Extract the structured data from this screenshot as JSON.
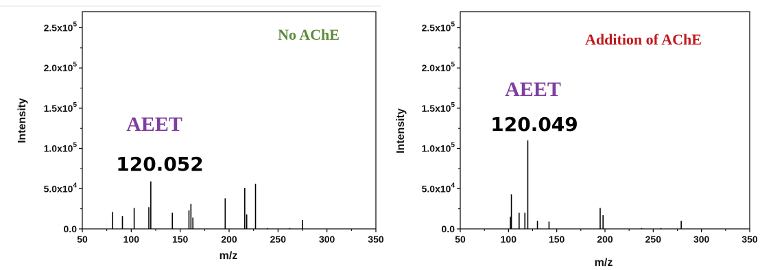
{
  "colors": {
    "green": "#5a8a3a",
    "red": "#c0191b",
    "purple": "#7e3fa0",
    "stick": "#000000"
  },
  "chart_data": [
    {
      "type": "bar",
      "subtype": "mass-spectrum-sticks",
      "title": "No AChE",
      "xlabel": "m/z",
      "ylabel": "Intensity",
      "xlim": [
        50,
        350
      ],
      "ylim": [
        0,
        270000
      ],
      "xticks": [
        "50",
        "100",
        "150",
        "200",
        "250",
        "300",
        "350"
      ],
      "yticks": [
        {
          "value": 0,
          "label": "0.0"
        },
        {
          "value": 50000,
          "base": "5.0x10",
          "exp": "4"
        },
        {
          "value": 100000,
          "base": "1.0x10",
          "exp": "5"
        },
        {
          "value": 150000,
          "base": "1.5x10",
          "exp": "5"
        },
        {
          "value": 200000,
          "base": "2.0x10",
          "exp": "5"
        },
        {
          "value": 250000,
          "base": "2.5x10",
          "exp": "5"
        }
      ],
      "annotations": {
        "compound": "AEET",
        "mz": "120.052"
      },
      "x": [
        81,
        91,
        103,
        118,
        120,
        142,
        159,
        161,
        163,
        196,
        216,
        218,
        227,
        239,
        262,
        275
      ],
      "y": [
        21000,
        16000,
        26000,
        27000,
        59000,
        20000,
        23000,
        31000,
        14000,
        38000,
        51000,
        18000,
        56000,
        1000,
        1000,
        11000
      ]
    },
    {
      "type": "bar",
      "subtype": "mass-spectrum-sticks",
      "title": "Addition of AChE",
      "xlabel": "m/z",
      "ylabel": "Intensity",
      "xlim": [
        50,
        350
      ],
      "ylim": [
        0,
        270000
      ],
      "xticks": [
        "50",
        "100",
        "150",
        "200",
        "250",
        "300",
        "350"
      ],
      "yticks": [
        {
          "value": 0,
          "label": "0.0"
        },
        {
          "value": 50000,
          "base": "5.0x10",
          "exp": "4"
        },
        {
          "value": 100000,
          "base": "1.0x10",
          "exp": "5"
        },
        {
          "value": 150000,
          "base": "1.5x10",
          "exp": "5"
        },
        {
          "value": 200000,
          "base": "2.0x10",
          "exp": "5"
        },
        {
          "value": 250000,
          "base": "2.5x10",
          "exp": "5"
        }
      ],
      "annotations": {
        "compound": "AEET",
        "mz": "120.049"
      },
      "x": [
        102,
        103,
        111,
        117,
        120,
        130,
        142,
        195,
        198,
        238,
        258,
        279
      ],
      "y": [
        15000,
        43000,
        20000,
        20000,
        110000,
        10000,
        9000,
        26000,
        17000,
        1000,
        1000,
        10000
      ]
    }
  ]
}
